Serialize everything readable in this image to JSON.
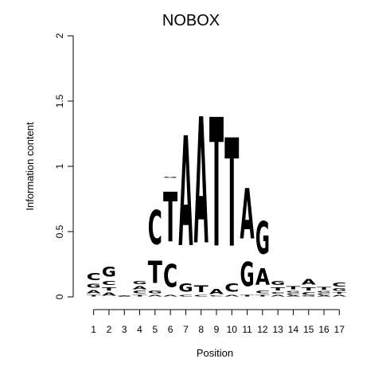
{
  "chart_data": {
    "type": "sequence-logo",
    "title": "NOBOX",
    "xlabel": "Position",
    "ylabel": "Information content",
    "ylim": [
      0,
      2
    ],
    "yticks": [
      "0",
      "0.5",
      "1",
      "1.5",
      "2"
    ],
    "xticks": [
      "1",
      "2",
      "3",
      "4",
      "5",
      "6",
      "7",
      "8",
      "9",
      "10",
      "11",
      "12",
      "13",
      "14",
      "15",
      "16",
      "17"
    ],
    "colors": {
      "A": "#00ee00",
      "C": "#0000ee",
      "G": "#f5a500",
      "T": "#ff0000"
    },
    "positions": [
      {
        "pos": "1",
        "stack": [
          [
            "T",
            0.02
          ],
          [
            "A",
            0.04
          ],
          [
            "G",
            0.05
          ],
          [
            "C",
            0.09
          ]
        ]
      },
      {
        "pos": "2",
        "stack": [
          [
            "A",
            0.04
          ],
          [
            "T",
            0.04
          ],
          [
            "C",
            0.05
          ],
          [
            "G",
            0.12
          ]
        ]
      },
      {
        "pos": "3",
        "stack": [
          [
            "A",
            0.003
          ],
          [
            "C",
            0.003
          ],
          [
            "G",
            0.003
          ],
          [
            "T",
            0.003
          ]
        ]
      },
      {
        "pos": "4",
        "stack": [
          [
            "T",
            0.02
          ],
          [
            "C",
            0.03
          ],
          [
            "A",
            0.04
          ],
          [
            "G",
            0.04
          ]
        ]
      },
      {
        "pos": "5",
        "stack": [
          [
            "A",
            0.02
          ],
          [
            "G",
            0.03
          ],
          [
            "T",
            0.27
          ],
          [
            "C",
            0.42
          ]
        ]
      },
      {
        "pos": "6",
        "stack": [
          [
            "A",
            0.02
          ],
          [
            "C",
            0.28
          ],
          [
            "T",
            0.61
          ],
          [
            "G",
            0.01
          ]
        ]
      },
      {
        "pos": "7",
        "stack": [
          [
            "C",
            0.02
          ],
          [
            "G",
            0.1
          ],
          [
            "A",
            1.35
          ]
        ]
      },
      {
        "pos": "8",
        "stack": [
          [
            "C",
            0.02
          ],
          [
            "T",
            0.08
          ],
          [
            "A",
            1.55
          ]
        ]
      },
      {
        "pos": "9",
        "stack": [
          [
            "C",
            0.01
          ],
          [
            "A",
            0.06
          ],
          [
            "T",
            1.58
          ]
        ]
      },
      {
        "pos": "10",
        "stack": [
          [
            "A",
            0.02
          ],
          [
            "C",
            0.1
          ],
          [
            "T",
            1.33
          ]
        ]
      },
      {
        "pos": "11",
        "stack": [
          [
            "T",
            0.02
          ],
          [
            "G",
            0.3
          ],
          [
            "A",
            0.62
          ]
        ]
      },
      {
        "pos": "12",
        "stack": [
          [
            "T",
            0.02
          ],
          [
            "C",
            0.03
          ],
          [
            "A",
            0.2
          ],
          [
            "G",
            0.4
          ]
        ]
      },
      {
        "pos": "13",
        "stack": [
          [
            "A",
            0.02
          ],
          [
            "C",
            0.02
          ],
          [
            "T",
            0.04
          ],
          [
            "G",
            0.05
          ]
        ]
      },
      {
        "pos": "14",
        "stack": [
          [
            "A",
            0.01
          ],
          [
            "C",
            0.02
          ],
          [
            "G",
            0.02
          ],
          [
            "T",
            0.04
          ]
        ]
      },
      {
        "pos": "15",
        "stack": [
          [
            "G",
            0.01
          ],
          [
            "C",
            0.03
          ],
          [
            "T",
            0.04
          ],
          [
            "A",
            0.07
          ]
        ]
      },
      {
        "pos": "16",
        "stack": [
          [
            "A",
            0.01
          ],
          [
            "C",
            0.02
          ],
          [
            "G",
            0.02
          ],
          [
            "T",
            0.03
          ]
        ]
      },
      {
        "pos": "17",
        "stack": [
          [
            "A",
            0.02
          ],
          [
            "T",
            0.02
          ],
          [
            "G",
            0.03
          ],
          [
            "C",
            0.05
          ]
        ]
      }
    ]
  }
}
